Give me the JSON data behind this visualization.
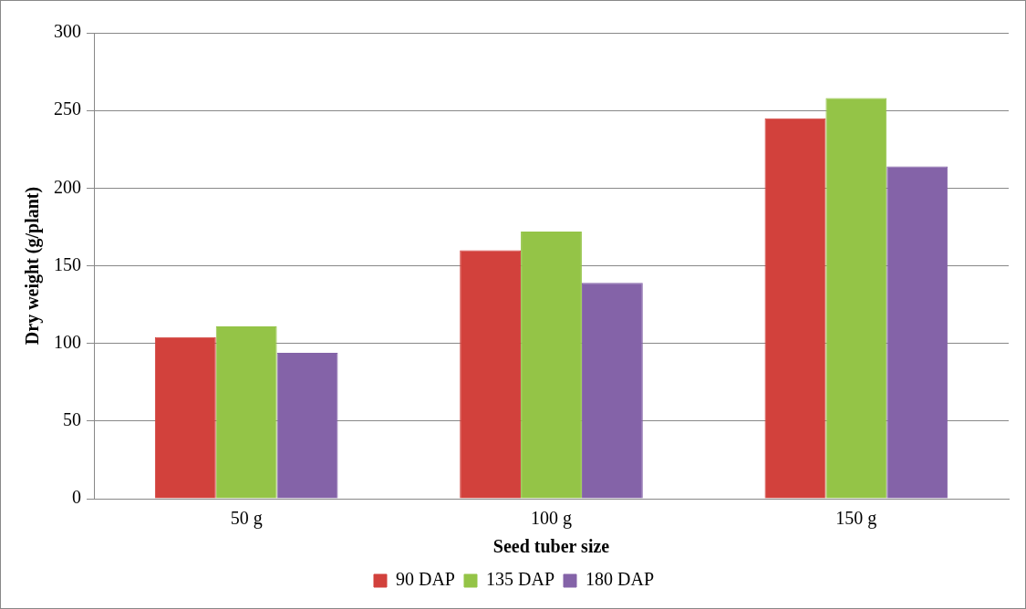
{
  "chart_data": {
    "type": "bar",
    "xlabel": "Seed tuber size",
    "ylabel": "Dry weight (g/plant)",
    "categories": [
      "50 g",
      "100 g",
      "150 g"
    ],
    "series": [
      {
        "name": "90 DAP",
        "color": "#d2413c",
        "values": [
          104,
          160,
          245
        ]
      },
      {
        "name": "135 DAP",
        "color": "#94c447",
        "values": [
          111,
          172,
          258
        ]
      },
      {
        "name": "180 DAP",
        "color": "#8463a8",
        "values": [
          94,
          139,
          214
        ]
      }
    ],
    "ylim": [
      0,
      300
    ],
    "yticks": [
      0,
      50,
      100,
      150,
      200,
      250,
      300
    ],
    "grid": "y",
    "legend": "bottom"
  }
}
